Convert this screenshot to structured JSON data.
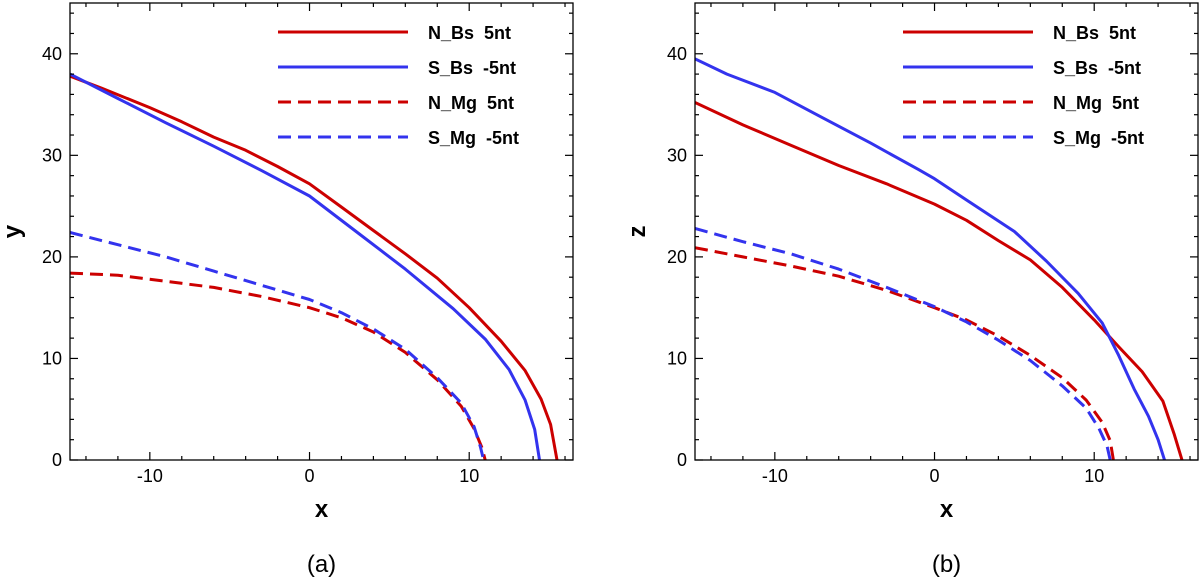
{
  "chart_data": [
    {
      "type": "line",
      "caption": "(a)",
      "xlabel": "x",
      "ylabel": "y",
      "xlim": [
        -15,
        16.5
      ],
      "ylim": [
        0,
        45
      ],
      "xticks": [
        -10,
        0,
        10
      ],
      "yticks": [
        0,
        10,
        20,
        30,
        40
      ],
      "grid": false,
      "legend_position": "top-right",
      "series": [
        {
          "name": "N_Bs  5nt",
          "color": "#cc0000",
          "dash": "solid",
          "x": [
            -15,
            -13,
            -10,
            -8,
            -6,
            -4,
            -2,
            0,
            2,
            4,
            6,
            8,
            10,
            12,
            13.5,
            14.5,
            15.1,
            15.5
          ],
          "y": [
            37.8,
            36.6,
            34.7,
            33.3,
            31.8,
            30.5,
            28.9,
            27.2,
            24.9,
            22.6,
            20.3,
            17.9,
            15.0,
            11.7,
            8.8,
            6.0,
            3.5,
            0
          ]
        },
        {
          "name": "S_Bs  -5nt",
          "color": "#3333ee",
          "dash": "solid",
          "x": [
            -15,
            -12,
            -9,
            -6,
            -3,
            0,
            3,
            6,
            9,
            11,
            12.5,
            13.5,
            14.1,
            14.4
          ],
          "y": [
            38.0,
            35.6,
            33.2,
            30.9,
            28.5,
            26.0,
            22.4,
            18.8,
            14.9,
            11.9,
            8.9,
            5.9,
            3.0,
            0
          ]
        },
        {
          "name": "N_Mg  5nt",
          "color": "#cc0000",
          "dash": "dashed",
          "x": [
            -15,
            -12,
            -9,
            -6,
            -3,
            0,
            2,
            4,
            6,
            8,
            9.5,
            10.3,
            10.8,
            11.0
          ],
          "y": [
            18.4,
            18.2,
            17.6,
            17.0,
            16.1,
            15.0,
            14.0,
            12.6,
            10.6,
            7.9,
            5.3,
            3.1,
            1.2,
            0
          ]
        },
        {
          "name": "S_Mg  -5nt",
          "color": "#3333ee",
          "dash": "dashed",
          "x": [
            -15,
            -12,
            -9,
            -6,
            -3,
            0,
            2,
            4,
            6,
            8,
            9.5,
            10.3,
            10.7,
            10.9
          ],
          "y": [
            22.4,
            21.2,
            20.0,
            18.6,
            17.2,
            15.8,
            14.5,
            12.9,
            10.9,
            8.1,
            5.6,
            3.3,
            1.3,
            0
          ]
        }
      ]
    },
    {
      "type": "line",
      "caption": "(b)",
      "xlabel": "x",
      "ylabel": "z",
      "xlim": [
        -15,
        16.5
      ],
      "ylim": [
        0,
        45
      ],
      "xticks": [
        -10,
        0,
        10
      ],
      "yticks": [
        0,
        10,
        20,
        30,
        40
      ],
      "grid": false,
      "legend_position": "top-right",
      "series": [
        {
          "name": "N_Bs  5nt",
          "color": "#cc0000",
          "dash": "solid",
          "x": [
            -15,
            -12,
            -9,
            -6,
            -3,
            0,
            2,
            4,
            6,
            8,
            10,
            11.5,
            13,
            14.3,
            15.0,
            15.5
          ],
          "y": [
            35.2,
            33.0,
            31.0,
            29.0,
            27.2,
            25.2,
            23.6,
            21.6,
            19.7,
            17.0,
            13.8,
            11.2,
            8.7,
            5.8,
            2.6,
            0
          ]
        },
        {
          "name": "S_Bs  -5nt",
          "color": "#3333ee",
          "dash": "solid",
          "x": [
            -15,
            -13,
            -10,
            -7,
            -4,
            -1,
            0,
            2,
            5,
            7,
            9,
            10.5,
            11.5,
            12.5,
            13.4,
            14.0,
            14.4
          ],
          "y": [
            39.5,
            38.0,
            36.2,
            33.7,
            31.2,
            28.6,
            27.7,
            25.6,
            22.5,
            19.6,
            16.4,
            13.5,
            10.4,
            7.0,
            4.3,
            2.0,
            0
          ]
        },
        {
          "name": "N_Mg  5nt",
          "color": "#cc0000",
          "dash": "dashed",
          "x": [
            -15,
            -12,
            -9,
            -6,
            -3,
            0,
            2,
            4,
            6,
            8,
            9.5,
            10.5,
            11.0,
            11.2
          ],
          "y": [
            20.9,
            20.0,
            19.1,
            18.1,
            16.7,
            15.0,
            13.8,
            12.2,
            10.3,
            8.1,
            5.9,
            3.7,
            1.9,
            0
          ]
        },
        {
          "name": "S_Mg  -5nt",
          "color": "#3333ee",
          "dash": "dashed",
          "x": [
            -15,
            -12,
            -9,
            -6,
            -3,
            0,
            2,
            4,
            6,
            8,
            9.5,
            10.3,
            10.8,
            11.0
          ],
          "y": [
            22.8,
            21.5,
            20.3,
            18.8,
            17.0,
            15.1,
            13.6,
            11.8,
            9.8,
            7.3,
            5.1,
            3.1,
            1.4,
            0
          ]
        }
      ]
    }
  ]
}
